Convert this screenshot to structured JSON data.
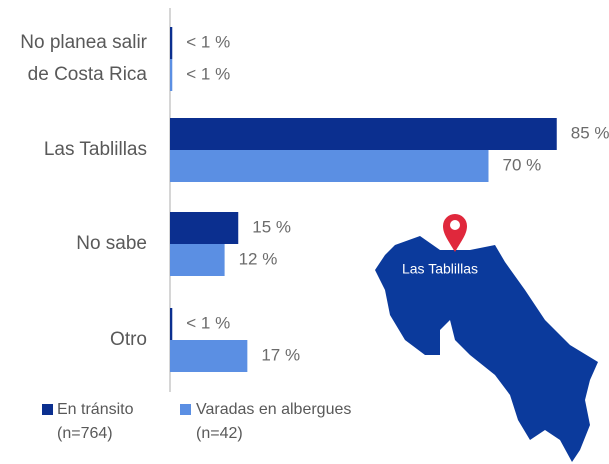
{
  "chart_data": {
    "type": "bar",
    "orientation": "horizontal",
    "categories": [
      "No planea salir de Costa Rica",
      "Las Tablillas",
      "No sabe",
      "Otro"
    ],
    "series": [
      {
        "name": "En tránsito (n=764)",
        "color": "#0b2f8f",
        "values": [
          0.5,
          85,
          15,
          0.5
        ],
        "value_labels": [
          "< 1 %",
          "85 %",
          "15 %",
          "< 1 %"
        ]
      },
      {
        "name": "Varadas en albergues (n=42)",
        "color": "#5b8fe3",
        "values": [
          0.5,
          70,
          12,
          17
        ],
        "value_labels": [
          "< 1 %",
          "70 %",
          "12 %",
          "17 %"
        ]
      }
    ],
    "annotation": "Las Tablillas"
  }
}
